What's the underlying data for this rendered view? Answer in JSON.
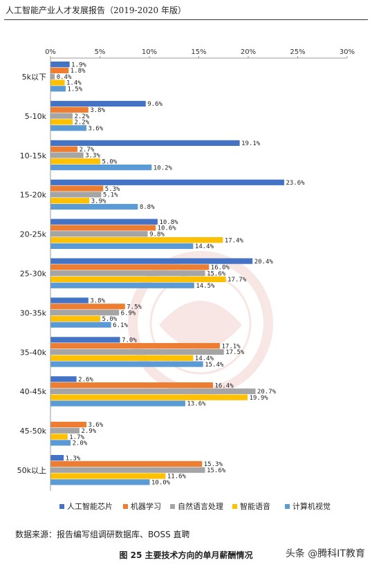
{
  "header": {
    "title": "人工智能产业人才发展报告（2019-2020 年版）"
  },
  "source_note": "数据来源：报告编写组调研数据库、BOSS 直聘",
  "caption": "图 25 主要技术方向的单月薪酬情况",
  "watermark_brand": "头条 @腾科IT教育",
  "chart_data": {
    "type": "bar",
    "orientation": "horizontal",
    "categories": [
      "5k以下",
      "5-10k",
      "10-15k",
      "15-20k",
      "20-25k",
      "25-30k",
      "30-35k",
      "35-40k",
      "40-45k",
      "45-50k",
      "50k以上"
    ],
    "series": [
      {
        "name": "人工智能芯片",
        "color": "#4472c4",
        "values": [
          1.9,
          9.6,
          19.1,
          23.6,
          10.8,
          20.4,
          3.8,
          7.0,
          2.6,
          null,
          1.3
        ]
      },
      {
        "name": "机器学习",
        "color": "#ed7d31",
        "values": [
          1.8,
          3.8,
          2.7,
          5.3,
          10.6,
          16.0,
          7.5,
          17.1,
          16.4,
          3.6,
          15.3
        ]
      },
      {
        "name": "自然语言处理",
        "color": "#a5a5a5",
        "values": [
          0.4,
          2.2,
          3.3,
          5.1,
          9.8,
          15.6,
          6.9,
          17.5,
          20.7,
          2.9,
          15.6
        ]
      },
      {
        "name": "智能语音",
        "color": "#ffc000",
        "values": [
          1.4,
          2.2,
          5.0,
          3.9,
          17.4,
          17.7,
          5.0,
          14.4,
          19.9,
          1.7,
          11.6
        ]
      },
      {
        "name": "计算机视觉",
        "color": "#5b9bd5",
        "values": [
          1.5,
          3.6,
          10.2,
          8.8,
          14.4,
          14.5,
          6.1,
          15.4,
          13.6,
          2.0,
          10.0
        ]
      }
    ],
    "xlim": [
      0,
      30
    ],
    "ticks": [
      0,
      5,
      10,
      15,
      20,
      25,
      30
    ],
    "tick_suffix": "%",
    "value_suffix": "%",
    "legend_position": "bottom",
    "grid": false
  }
}
